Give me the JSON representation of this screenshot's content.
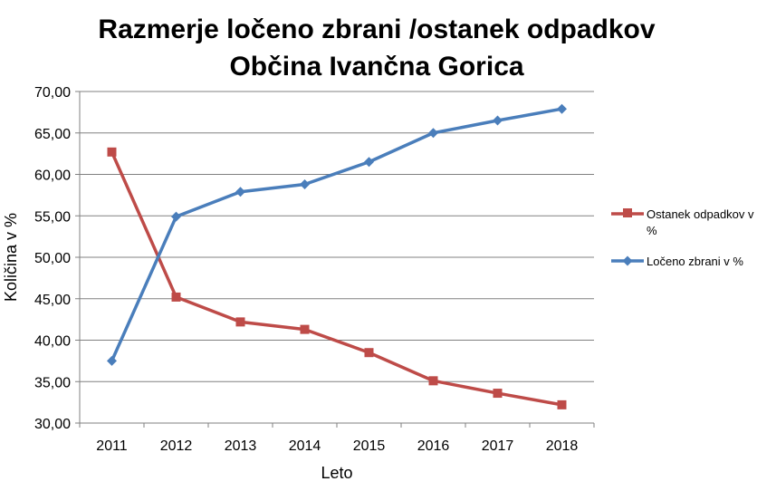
{
  "chart_data": {
    "type": "line",
    "title": "Razmerje ločeno zbrani /ostanek odpadkov",
    "subtitle": "Občina Ivančna Gorica",
    "xlabel": "Leto",
    "ylabel": "Količina v %",
    "categories": [
      "2011",
      "2012",
      "2013",
      "2014",
      "2015",
      "2016",
      "2017",
      "2018"
    ],
    "ylim": [
      30,
      70
    ],
    "yticks": [
      "30,00",
      "35,00",
      "40,00",
      "45,00",
      "50,00",
      "55,00",
      "60,00",
      "65,00",
      "70,00"
    ],
    "grid": true,
    "legend_position": "right",
    "series": [
      {
        "name": "Ostanek odpadkov v %",
        "color": "#BE4B48",
        "marker": "square",
        "values": [
          62.7,
          45.2,
          42.2,
          41.3,
          38.5,
          35.1,
          33.6,
          32.2
        ]
      },
      {
        "name": "Ločeno zbrani v %",
        "color": "#4A7EBB",
        "marker": "diamond",
        "values": [
          37.5,
          54.9,
          57.9,
          58.8,
          61.5,
          65.0,
          66.5,
          67.9
        ]
      }
    ]
  }
}
